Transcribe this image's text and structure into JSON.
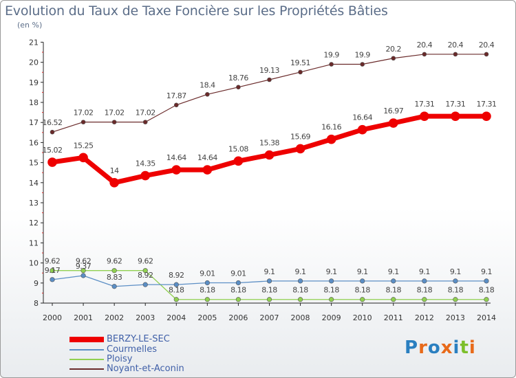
{
  "header": {
    "title": "Evolution du Taux de Taxe Foncière sur les Propriétés Bâties",
    "unit": "(en %)"
  },
  "colors": {
    "BERZY-LE-SEC": "#ee0000",
    "Courmelles": "#5b8ec5",
    "Ploisy": "#90d050",
    "Noyant-et-Aconin": "#6a2a2a"
  },
  "logo": {
    "text": "Proxiti"
  },
  "chart_data": {
    "type": "line",
    "title": "Evolution du Taux de Taxe Foncière sur les Propriétés Bâties",
    "ylabel": "(en %)",
    "xlabel": "",
    "x": [
      "2000",
      "2001",
      "2002",
      "2003",
      "2004",
      "2005",
      "2006",
      "2007",
      "2008",
      "2009",
      "2010",
      "2011",
      "2012",
      "2013",
      "2014"
    ],
    "ylim": [
      8,
      21
    ],
    "yticks": [
      8,
      9,
      10,
      11,
      12,
      13,
      14,
      15,
      16,
      17,
      18,
      19,
      20,
      21
    ],
    "ytick_labels": [
      "8",
      "9",
      "10",
      "11",
      "12",
      "13",
      "14",
      "15",
      "16",
      "17",
      "18",
      "19",
      "20",
      "21"
    ],
    "grid": false,
    "legend": "bottom-left",
    "series": [
      {
        "name": "BERZY-LE-SEC",
        "values": [
          15.02,
          15.25,
          14,
          14.35,
          14.64,
          14.64,
          15.08,
          15.38,
          15.69,
          16.16,
          16.64,
          16.97,
          17.31,
          17.31,
          17.31
        ],
        "labels": [
          "15.02",
          "15.25",
          "14",
          "14.35",
          "14.64",
          "14.64",
          "15.08",
          "15.38",
          "15.69",
          "16.16",
          "16.64",
          "16.97",
          "17.31",
          "17.31",
          "17.31"
        ]
      },
      {
        "name": "Courmelles",
        "values": [
          9.17,
          9.37,
          8.83,
          8.92,
          8.92,
          9.01,
          9.01,
          9.1,
          9.1,
          9.1,
          9.1,
          9.1,
          9.1,
          9.1,
          9.1
        ],
        "labels": [
          "9.17",
          "9.37",
          "8.83",
          "8.92",
          "8.92",
          "9.01",
          "9.01",
          "9.1",
          "9.1",
          "9.1",
          "9.1",
          "9.1",
          "9.1",
          "9.1",
          "9.1"
        ]
      },
      {
        "name": "Ploisy",
        "values": [
          9.62,
          9.62,
          9.62,
          9.62,
          8.18,
          8.18,
          8.18,
          8.18,
          8.18,
          8.18,
          8.18,
          8.18,
          8.18,
          8.18,
          8.18
        ],
        "labels": [
          "9.62",
          "9.62",
          "9.62",
          "9.62",
          "8.18",
          "8.18",
          "8.18",
          "8.18",
          "8.18",
          "8.18",
          "8.18",
          "8.18",
          "8.18",
          "8.18",
          "8.18"
        ]
      },
      {
        "name": "Noyant-et-Aconin",
        "values": [
          16.52,
          17.02,
          17.02,
          17.02,
          17.87,
          18.4,
          18.76,
          19.13,
          19.51,
          19.9,
          19.9,
          20.2,
          20.4,
          20.4,
          20.4
        ],
        "labels": [
          "16.52",
          "17.02",
          "17.02",
          "17.02",
          "17.87",
          "18.4",
          "18.76",
          "19.13",
          "19.51",
          "19.9",
          "19.9",
          "20.2",
          "20.4",
          "20.4",
          "20.4"
        ]
      }
    ]
  }
}
